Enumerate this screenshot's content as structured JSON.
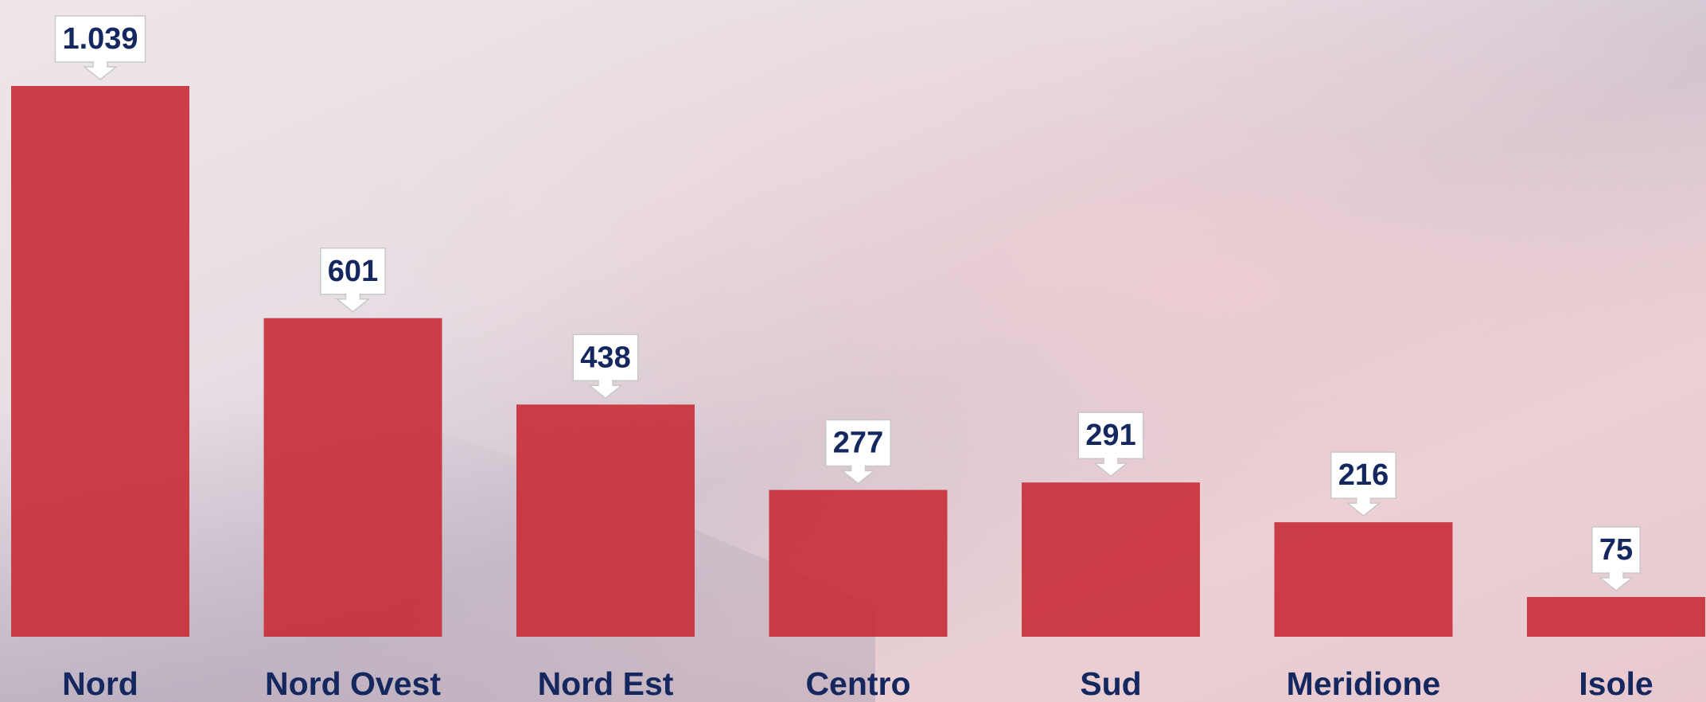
{
  "chart_data": {
    "type": "bar",
    "categories": [
      "Nord",
      "Nord Ovest",
      "Nord Est",
      "Centro",
      "Sud",
      "Meridione",
      "Isole"
    ],
    "values": [
      1039,
      601,
      438,
      277,
      291,
      216,
      75
    ],
    "value_labels": [
      "1.039",
      "601",
      "438",
      "277",
      "291",
      "216",
      "75"
    ],
    "color": "#c8303a"
  }
}
